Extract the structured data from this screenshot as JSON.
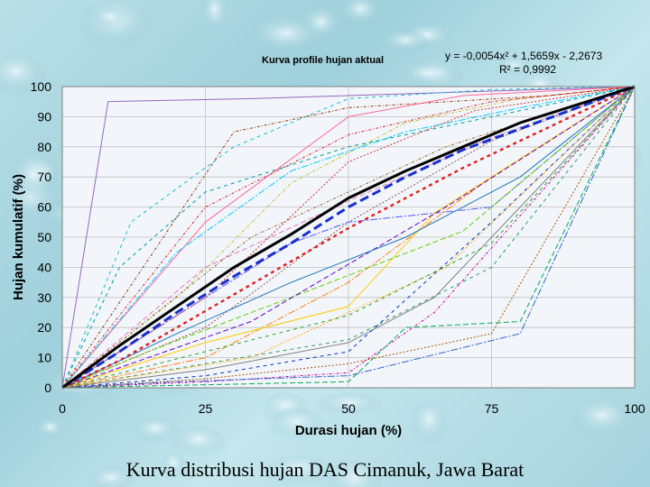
{
  "slide": {
    "caption": "Kurva distribusi hujan DAS Cimanuk, Jawa Barat"
  },
  "colors": {
    "background": "#b7dde5",
    "plot_background": "#f2f6fb",
    "gridline": "#bfbfbf",
    "fit_curve": "#000000",
    "mean_curve": "#1a2fcc",
    "red_dashed": "#e02020"
  },
  "chart_data": {
    "type": "line",
    "title": "Kurva profile hujan aktual",
    "xlabel": "Durasi hujan (%)",
    "ylabel": "Hujan kumulatif (%)",
    "xlim": [
      0,
      100
    ],
    "ylim": [
      0,
      100
    ],
    "x_ticks": [
      "0",
      "25",
      "50",
      "75",
      "100"
    ],
    "y_ticks": [
      "0",
      "10",
      "20",
      "30",
      "40",
      "50",
      "60",
      "70",
      "80",
      "90",
      "100"
    ],
    "grid": true,
    "trendline": {
      "equation_line1": "y = -0,0054x² + 1,5659x - 2,2673",
      "equation_line2": "R² = 0,9992",
      "coefficients": {
        "a": -0.0054,
        "b": 1.5659,
        "c": -2.2673
      }
    },
    "series": [
      {
        "style": "solid-black-thick",
        "x": [
          0,
          10,
          20,
          30,
          40,
          50,
          60,
          70,
          80,
          90,
          100
        ],
        "y": [
          0,
          14,
          27,
          40,
          51,
          63,
          72,
          80,
          88,
          94,
          100
        ]
      },
      {
        "style": "dashed-blue-thick",
        "x": [
          0,
          10,
          20,
          30,
          40,
          50,
          60,
          70,
          80,
          90,
          100
        ],
        "y": [
          0,
          12,
          25,
          37,
          48,
          60,
          70,
          79,
          86,
          93,
          100
        ]
      },
      {
        "style": "dashed-red",
        "x": [
          0,
          10,
          20,
          30,
          40,
          50,
          60,
          70,
          80,
          90,
          100
        ],
        "y": [
          0,
          9,
          20,
          31,
          42,
          53,
          63,
          73,
          82,
          91,
          100
        ]
      },
      {
        "x": [
          0,
          8,
          33,
          100
        ],
        "y": [
          0,
          95,
          96,
          100
        ]
      },
      {
        "x": [
          0,
          12,
          30,
          50,
          75,
          100
        ],
        "y": [
          0,
          55,
          80,
          96,
          99,
          100
        ]
      },
      {
        "x": [
          0,
          20,
          40,
          60,
          80,
          100
        ],
        "y": [
          0,
          30,
          68,
          88,
          96,
          100
        ]
      },
      {
        "x": [
          0,
          25,
          50,
          75,
          100
        ],
        "y": [
          0,
          40,
          62,
          83,
          100
        ]
      },
      {
        "x": [
          0,
          25,
          50,
          75,
          100
        ],
        "y": [
          0,
          20,
          55,
          82,
          100
        ]
      },
      {
        "x": [
          0,
          25,
          50,
          75,
          100
        ],
        "y": [
          0,
          10,
          35,
          70,
          100
        ]
      },
      {
        "x": [
          0,
          25,
          50,
          65,
          100
        ],
        "y": [
          0,
          6,
          15,
          30,
          100
        ]
      },
      {
        "x": [
          0,
          25,
          50,
          75,
          100
        ],
        "y": [
          0,
          4,
          12,
          55,
          100
        ]
      },
      {
        "x": [
          0,
          25,
          50,
          65,
          100
        ],
        "y": [
          0,
          2,
          5,
          25,
          100
        ]
      },
      {
        "x": [
          0,
          50,
          60,
          80,
          100
        ],
        "y": [
          0,
          2,
          20,
          22,
          100
        ]
      },
      {
        "x": [
          0,
          25,
          50,
          75,
          100
        ],
        "y": [
          0,
          3,
          8,
          18,
          100
        ]
      },
      {
        "x": [
          0,
          40,
          50,
          75,
          100
        ],
        "y": [
          0,
          48,
          55,
          60,
          100
        ]
      },
      {
        "x": [
          0,
          25,
          50,
          65,
          100
        ],
        "y": [
          0,
          15,
          27,
          58,
          100
        ]
      },
      {
        "x": [
          0,
          10,
          25,
          50,
          100
        ],
        "y": [
          0,
          40,
          65,
          80,
          100
        ]
      },
      {
        "x": [
          0,
          30,
          50,
          85,
          100
        ],
        "y": [
          0,
          85,
          93,
          97,
          100
        ]
      },
      {
        "x": [
          0,
          15,
          40,
          70,
          100
        ],
        "y": [
          0,
          12,
          30,
          52,
          100
        ]
      },
      {
        "x": [
          0,
          25,
          50,
          72,
          100
        ],
        "y": [
          0,
          30,
          75,
          92,
          100
        ]
      },
      {
        "x": [
          0,
          20,
          50,
          80,
          100
        ],
        "y": [
          0,
          2,
          4,
          18,
          100
        ]
      },
      {
        "x": [
          0,
          25,
          50,
          70,
          100
        ],
        "y": [
          0,
          55,
          90,
          97,
          100
        ]
      },
      {
        "x": [
          0,
          25,
          50,
          75,
          100
        ],
        "y": [
          0,
          8,
          16,
          40,
          100
        ]
      },
      {
        "x": [
          0,
          33,
          67,
          100
        ],
        "y": [
          0,
          50,
          80,
          100
        ]
      },
      {
        "x": [
          0,
          33,
          67,
          100
        ],
        "y": [
          0,
          22,
          60,
          100
        ]
      },
      {
        "x": [
          0,
          33,
          67,
          100
        ],
        "y": [
          0,
          10,
          40,
          100
        ]
      },
      {
        "x": [
          0,
          20,
          40,
          60,
          80,
          100
        ],
        "y": [
          0,
          45,
          72,
          85,
          93,
          100
        ]
      },
      {
        "x": [
          0,
          20,
          40,
          60,
          80,
          100
        ],
        "y": [
          0,
          18,
          35,
          50,
          70,
          100
        ]
      },
      {
        "x": [
          0,
          25,
          50,
          75,
          100
        ],
        "y": [
          0,
          12,
          24,
          48,
          100
        ]
      },
      {
        "x": [
          0,
          25,
          50,
          75,
          100
        ],
        "y": [
          0,
          60,
          84,
          95,
          100
        ]
      }
    ]
  }
}
